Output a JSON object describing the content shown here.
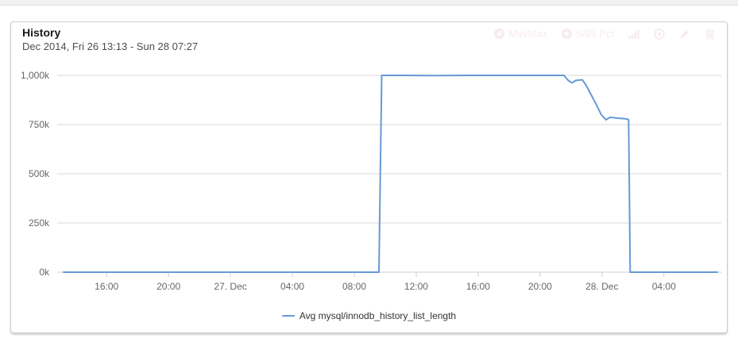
{
  "card": {
    "title": "History",
    "subtitle": "Dec 2014, Fri 26 13:13 - Sun 28 07:27",
    "controls": {
      "min_max": {
        "label": "Min/Max",
        "icon": "plus-circle"
      },
      "pct": {
        "label": "5/95 Pct",
        "icon": "plus-circle"
      },
      "bar_chart": {
        "icon": "bar-chart"
      },
      "target": {
        "icon": "target"
      },
      "edit": {
        "icon": "pencil"
      },
      "delete": {
        "icon": "trash"
      }
    },
    "faint_control_color": "#f7ecec"
  },
  "chart_data": {
    "type": "line",
    "title": "History",
    "subtitle": "Dec 2014, Fri 26 13:13 - Sun 28 07:27",
    "time_range": {
      "start": "Fri 26 Dec 2014 13:13",
      "end": "Sun 28 Dec 2014 07:27",
      "hours": 42.23
    },
    "ylabel": "",
    "xlabel": "",
    "ylim": [
      0,
      1000
    ],
    "unit": "k (thousands)",
    "grid": "horizontal",
    "legend_position": "bottom-center",
    "y_ticks": [
      {
        "v": 0,
        "label": "0k"
      },
      {
        "v": 250,
        "label": "250k"
      },
      {
        "v": 500,
        "label": "500k"
      },
      {
        "v": 750,
        "label": "750k"
      },
      {
        "v": 1000,
        "label": "1,000k"
      }
    ],
    "x_ticks": [
      {
        "t": 2.78,
        "label": "16:00"
      },
      {
        "t": 6.78,
        "label": "20:00"
      },
      {
        "t": 10.78,
        "label": "27. Dec"
      },
      {
        "t": 14.78,
        "label": "04:00"
      },
      {
        "t": 18.78,
        "label": "08:00"
      },
      {
        "t": 22.78,
        "label": "12:00"
      },
      {
        "t": 26.78,
        "label": "16:00"
      },
      {
        "t": 30.78,
        "label": "20:00"
      },
      {
        "t": 34.78,
        "label": "28. Dec"
      },
      {
        "t": 38.78,
        "label": "04:00"
      }
    ],
    "series": [
      {
        "name": "Avg mysql/innodb_history_list_length",
        "color": "#6699d6",
        "points_format": "[hours_since_start, value_in_thousands]",
        "points": [
          [
            0,
            0
          ],
          [
            6,
            0
          ],
          [
            12,
            0
          ],
          [
            18,
            0
          ],
          [
            20.37,
            0
          ],
          [
            20.55,
            1000
          ],
          [
            22,
            1000
          ],
          [
            24,
            999
          ],
          [
            26,
            1000
          ],
          [
            28,
            1000
          ],
          [
            30,
            1000
          ],
          [
            32.32,
            1000
          ],
          [
            32.58,
            976
          ],
          [
            32.84,
            962
          ],
          [
            33.09,
            974
          ],
          [
            33.5,
            978
          ],
          [
            33.76,
            949
          ],
          [
            34.12,
            896
          ],
          [
            34.48,
            841
          ],
          [
            34.73,
            801
          ],
          [
            35.04,
            774
          ],
          [
            35.3,
            787
          ],
          [
            35.91,
            782
          ],
          [
            36.27,
            780
          ],
          [
            36.5,
            776
          ],
          [
            36.6,
            0
          ],
          [
            38,
            0
          ],
          [
            40,
            0
          ],
          [
            42.23,
            0
          ]
        ]
      }
    ]
  }
}
